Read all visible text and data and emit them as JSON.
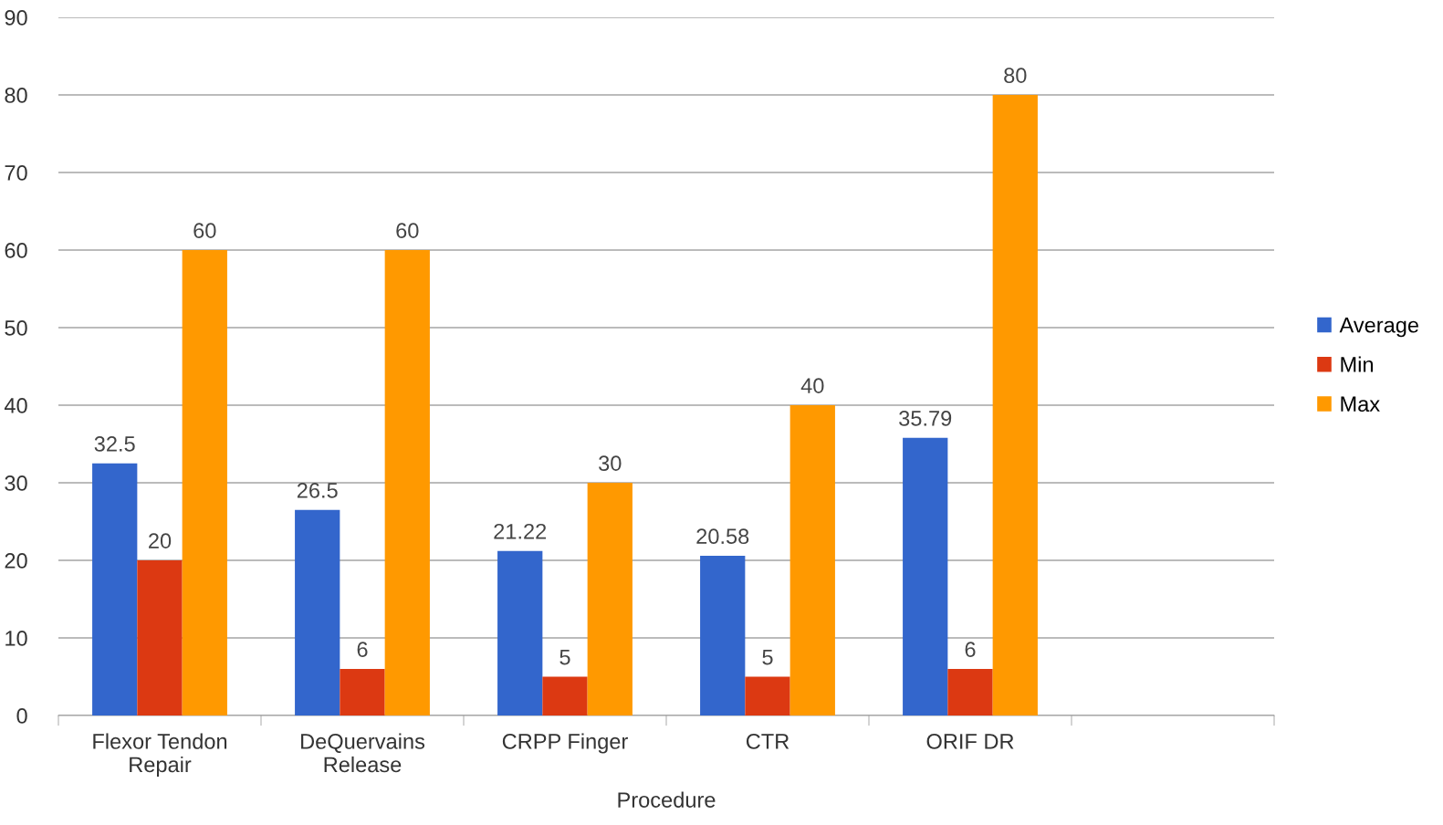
{
  "chart_data": {
    "type": "bar",
    "xlabel": "Procedure",
    "categories": [
      "Flexor Tendon\nRepair",
      "DeQuervains\nRelease",
      "CRPP Finger",
      "CTR",
      "ORIF DR",
      null
    ],
    "series": [
      {
        "name": "Average",
        "color": "#3366cc",
        "values": [
          32.5,
          26.5,
          21.22,
          20.58,
          35.79,
          null
        ]
      },
      {
        "name": "Min",
        "color": "#dc3912",
        "values": [
          20,
          6,
          5,
          5,
          6,
          null
        ]
      },
      {
        "name": "Max",
        "color": "#ff9900",
        "values": [
          60,
          60,
          30,
          40,
          80,
          null
        ]
      }
    ],
    "ylim": [
      0,
      90
    ],
    "yticks": [
      0,
      10,
      20,
      30,
      40,
      50,
      60,
      70,
      80,
      90
    ],
    "grid": "y",
    "legend": "right",
    "data_labels": true
  }
}
